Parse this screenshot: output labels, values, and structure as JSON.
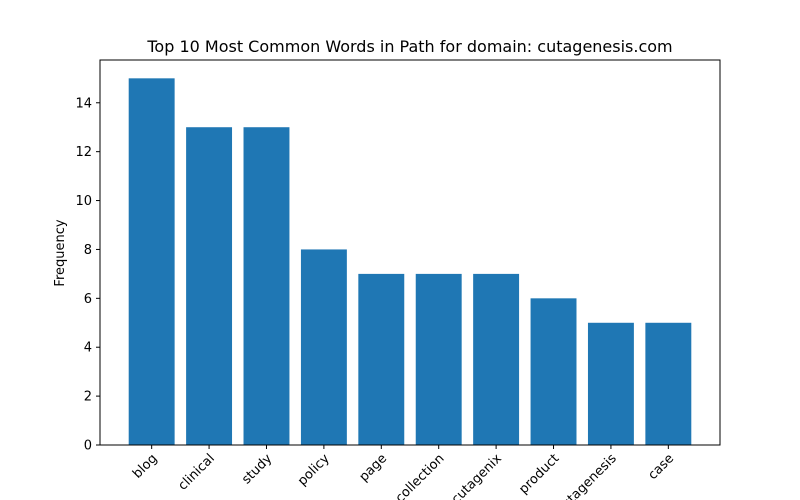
{
  "chart_data": {
    "type": "bar",
    "title": "Top 10 Most Common Words in Path for domain: cutagenesis.com",
    "xlabel": "",
    "ylabel": "Frequency",
    "categories": [
      "blog",
      "clinical",
      "study",
      "policy",
      "page",
      "collection",
      "cutagenix",
      "product",
      "cutagenesis",
      "case"
    ],
    "values": [
      15,
      13,
      13,
      8,
      7,
      7,
      7,
      6,
      5,
      5
    ],
    "ylim": [
      0,
      15.75
    ],
    "yticks": [
      0,
      2,
      4,
      6,
      8,
      10,
      12,
      14
    ],
    "bar_color": "#1f77b4",
    "grid": false,
    "legend": "none"
  }
}
